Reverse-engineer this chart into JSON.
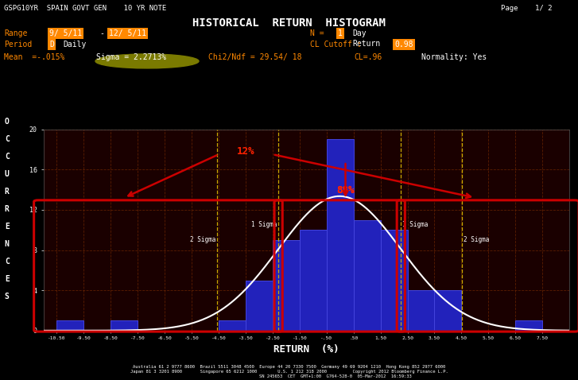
{
  "title_top": "GSPG10YR  SPAIN GOVT GEN    10 YR NOTE",
  "title_main": "HISTORICAL  RETURN  HISTOGRAM",
  "page_info": "Page    1/ 2",
  "range_start": "9/ 5/11",
  "range_end": "12/ 5/11",
  "n_value": "1",
  "cl_cutoff_value": "0.98",
  "mean_text": "Mean  =-.015%",
  "sigma_text": "Sigma = 2.2713%",
  "chi2_text": "Chi2/Ndf = 29.54/ 18",
  "cl_text": "CL=.96",
  "normality_text": "Normality: Yes",
  "xlabel": "RETURN  (%)",
  "bg_color": "#000000",
  "plot_bg_color": "#1a0000",
  "bar_color": "#2222bb",
  "bar_edge_color": "#4444dd",
  "grid_color": "#6B2500",
  "sigma_line_color": "#ccaa00",
  "normal_curve_color": "#ffffff",
  "bin_edges": [
    -10.5,
    -9.5,
    -8.5,
    -7.5,
    -6.5,
    -5.5,
    -4.5,
    -3.5,
    -2.5,
    -1.5,
    -0.5,
    0.5,
    1.5,
    2.5,
    3.5,
    4.5,
    5.5,
    6.5,
    7.5
  ],
  "bar_heights": [
    1,
    0,
    1,
    0,
    0,
    0,
    1,
    5,
    9,
    10,
    19,
    11,
    10,
    4,
    4,
    0,
    0,
    1
  ],
  "ylim": [
    0,
    20
  ],
  "xlim": [
    -11.0,
    8.5
  ],
  "xtick_labels": [
    "-10.50",
    "-9.50",
    "-8.50",
    "-7.50",
    "-6.50",
    "-5.50",
    "-4.50",
    "-3.50",
    "-2.50",
    "-1.50",
    "-.50",
    ".50",
    "1.50",
    "2.50",
    "3.50",
    "4.50",
    "5.50",
    "6.50",
    "7.50"
  ],
  "yticks": [
    0,
    4,
    8,
    12,
    16,
    20
  ],
  "mean": -0.015,
  "sigma": 2.2713,
  "orange_color": "#ff8800",
  "red_bright": "#ff2200",
  "footer_text": "Australia 61 2 9777 8600  Brazil 5511 3048 4500  Europe 44 20 7330 7500  Germany 49 69 9204 1210  Hong Kong 852 2977 6000\nJapan 81 3 3201 8900       Singapore 65 6212 1000        U.S. 1 212 318 2000          Copyright 2012 Bloomberg Finance L.P.\n                                    SN 245653  CET  GMT+1:00  G764-528-0  05-Mar-2012  16:59:33"
}
